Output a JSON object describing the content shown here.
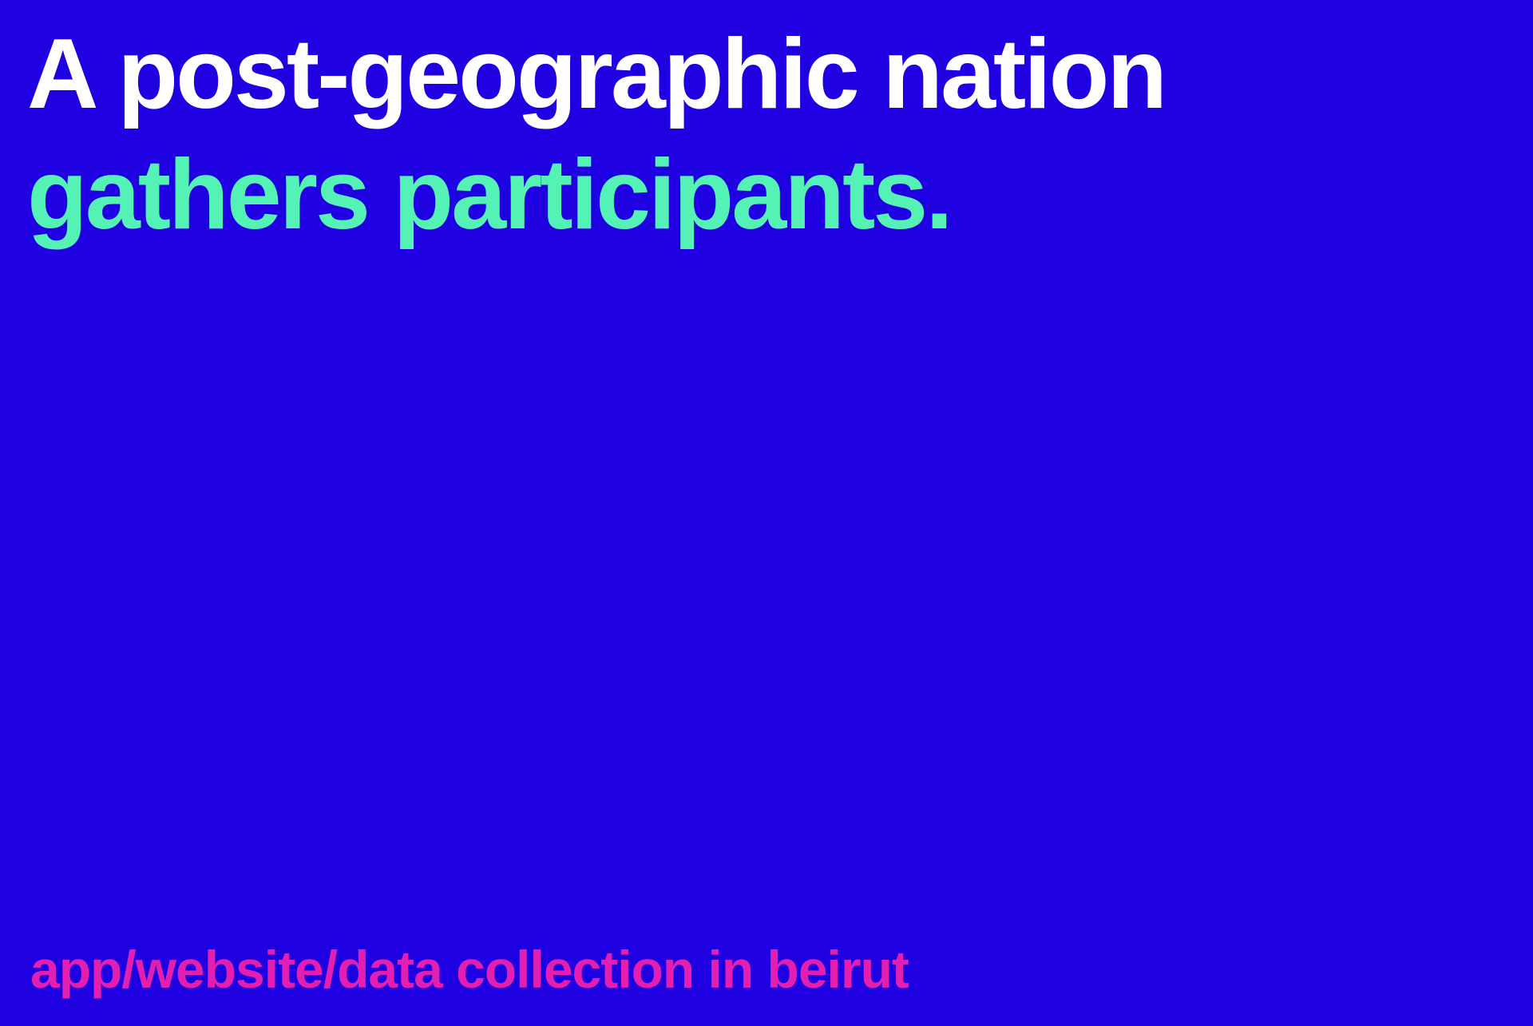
{
  "headline": {
    "line1": "A post-geographic nation",
    "line2": "gathers participants."
  },
  "footer": {
    "caption": "app/website/data collection in beirut"
  },
  "colors": {
    "background": "#1e00e0",
    "headline_line1": "#ffffff",
    "headline_line2": "#55f2b6",
    "caption": "#e21fb0"
  }
}
